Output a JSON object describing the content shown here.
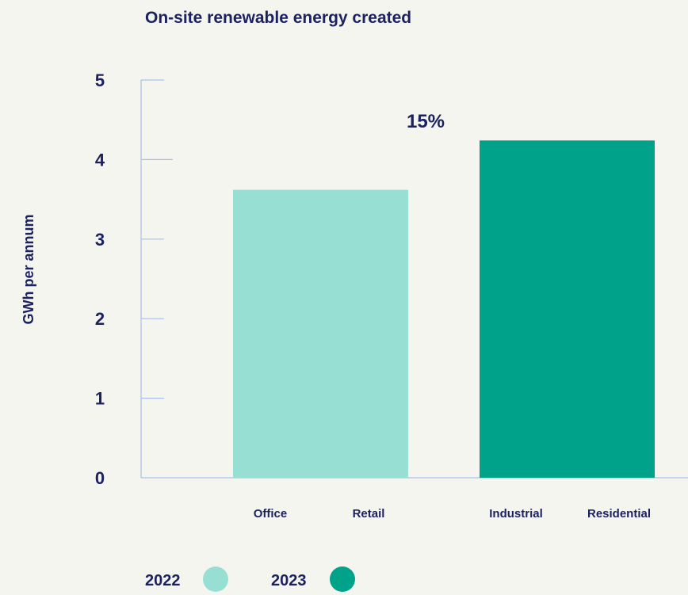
{
  "chart_data": {
    "type": "bar",
    "title": "On-site renewable energy created",
    "ylabel": "GWh per annum",
    "xlabel": "",
    "ylim": [
      0,
      5
    ],
    "yticks": [
      "0",
      "1",
      "2",
      "3",
      "4",
      "5"
    ],
    "series": [
      {
        "name": "2022",
        "value": 3.62,
        "color": "#98dfd3",
        "categories": [
          "Office",
          "Retail"
        ]
      },
      {
        "name": "2023",
        "value": 4.24,
        "color": "#00a28a",
        "categories": [
          "Industrial",
          "Residential"
        ]
      }
    ],
    "annotation": "15%",
    "legend": [
      {
        "label": "2022",
        "color": "#98dfd3"
      },
      {
        "label": "2023",
        "color": "#00a28a"
      }
    ],
    "legend_position": "bottom-left",
    "grid": false
  }
}
